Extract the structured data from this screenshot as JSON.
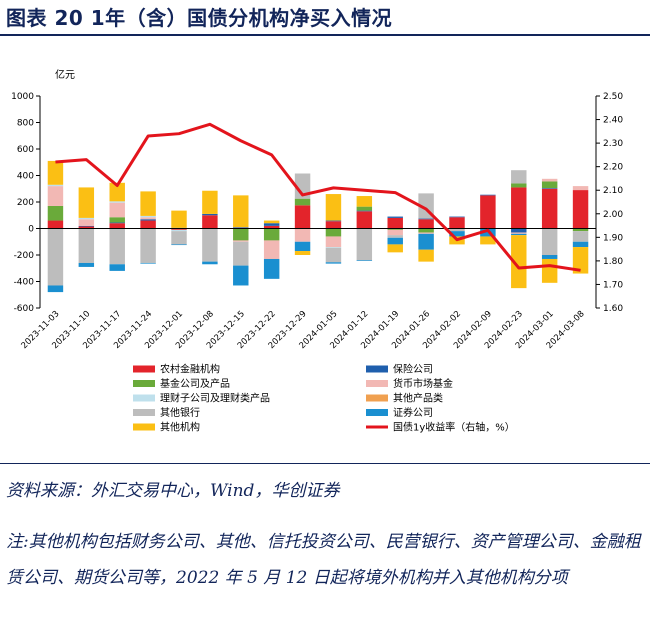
{
  "figure_title": "图表 20   1年（含）国债分机构净买入情况",
  "source_text": "资料来源：外汇交易中心，Wind，华创证券",
  "note_text": "注:其他机构包括财务公司、其他、信托投资公司、民营银行、资产管理公司、金融租赁公司、期货公司等，2022 年 5 月 12 日起将境外机构并入其他机构分项",
  "chart_data": {
    "type": "bar",
    "stacked": true,
    "unit_label": "亿元",
    "categories": [
      "2023-11-03",
      "2023-11-10",
      "2023-11-17",
      "2023-11-24",
      "2023-12-01",
      "2023-12-08",
      "2023-12-15",
      "2023-12-22",
      "2023-12-29",
      "2024-01-05",
      "2024-01-12",
      "2024-01-19",
      "2024-01-26",
      "2024-02-02",
      "2024-02-09",
      "2024-02-23",
      "2024-03-01",
      "2024-03-08"
    ],
    "ylim_left": [
      -600,
      1000
    ],
    "yticks_left": [
      -600,
      -400,
      -200,
      0,
      200,
      400,
      600,
      800,
      1000
    ],
    "ylim_right": [
      1.6,
      2.5
    ],
    "yticks_right": [
      "1.60",
      "1.70",
      "1.80",
      "1.90",
      "2.00",
      "2.10",
      "2.20",
      "2.30",
      "2.40",
      "2.50"
    ],
    "series": [
      {
        "name": "农村金融机构",
        "color": "#e3242b",
        "values": [
          60,
          15,
          40,
          60,
          -10,
          100,
          5,
          20,
          175,
          55,
          130,
          80,
          70,
          85,
          250,
          310,
          300,
          290
        ]
      },
      {
        "name": "保险公司",
        "color": "#1f5fad",
        "values": [
          0,
          5,
          5,
          10,
          5,
          10,
          5,
          20,
          0,
          5,
          5,
          10,
          5,
          5,
          5,
          -30,
          5,
          0
        ]
      },
      {
        "name": "基金公司及产品",
        "color": "#6aaa3a",
        "values": [
          110,
          0,
          40,
          0,
          0,
          0,
          -90,
          -90,
          50,
          -60,
          30,
          -10,
          -30,
          0,
          0,
          30,
          50,
          -20
        ]
      },
      {
        "name": "货币市场基金",
        "color": "#f2b8b4",
        "values": [
          150,
          50,
          110,
          15,
          0,
          0,
          -10,
          -140,
          -100,
          -80,
          0,
          -40,
          -10,
          0,
          0,
          -10,
          20,
          30
        ]
      },
      {
        "name": "理财子公司及理财类产品",
        "color": "#bfe0ec",
        "values": [
          10,
          10,
          10,
          10,
          -10,
          0,
          0,
          0,
          0,
          -5,
          0,
          0,
          0,
          0,
          0,
          0,
          0,
          0
        ]
      },
      {
        "name": "其他产品类",
        "color": "#f0a050",
        "values": [
          0,
          0,
          0,
          0,
          0,
          0,
          0,
          0,
          0,
          0,
          0,
          0,
          0,
          0,
          0,
          0,
          0,
          0
        ]
      },
      {
        "name": "其他银行",
        "color": "#bdbdbd",
        "values": [
          -430,
          -260,
          -270,
          -260,
          -100,
          -250,
          -180,
          0,
          190,
          -110,
          -240,
          -20,
          190,
          -20,
          0,
          100,
          -200,
          -80
        ]
      },
      {
        "name": "证券公司",
        "color": "#1a8fd0",
        "values": [
          -50,
          -30,
          -50,
          -5,
          -5,
          -20,
          -150,
          -150,
          -70,
          -10,
          -5,
          -50,
          -120,
          -40,
          -60,
          -10,
          -30,
          -40
        ]
      },
      {
        "name": "其他机构",
        "color": "#fbbf14",
        "values": [
          180,
          230,
          140,
          185,
          130,
          175,
          240,
          20,
          -30,
          200,
          80,
          -60,
          -90,
          -60,
          -60,
          -400,
          -180,
          -200
        ]
      }
    ],
    "line_series": {
      "name": "国债1y收益率（右轴，%）",
      "color": "#e3141c",
      "values": [
        2.22,
        2.23,
        2.12,
        2.33,
        2.34,
        2.38,
        2.31,
        2.25,
        2.08,
        2.11,
        2.1,
        2.09,
        2.02,
        1.89,
        1.93,
        1.77,
        1.78,
        1.76
      ]
    },
    "legend": {
      "position": "bottom",
      "columns": 2
    }
  }
}
